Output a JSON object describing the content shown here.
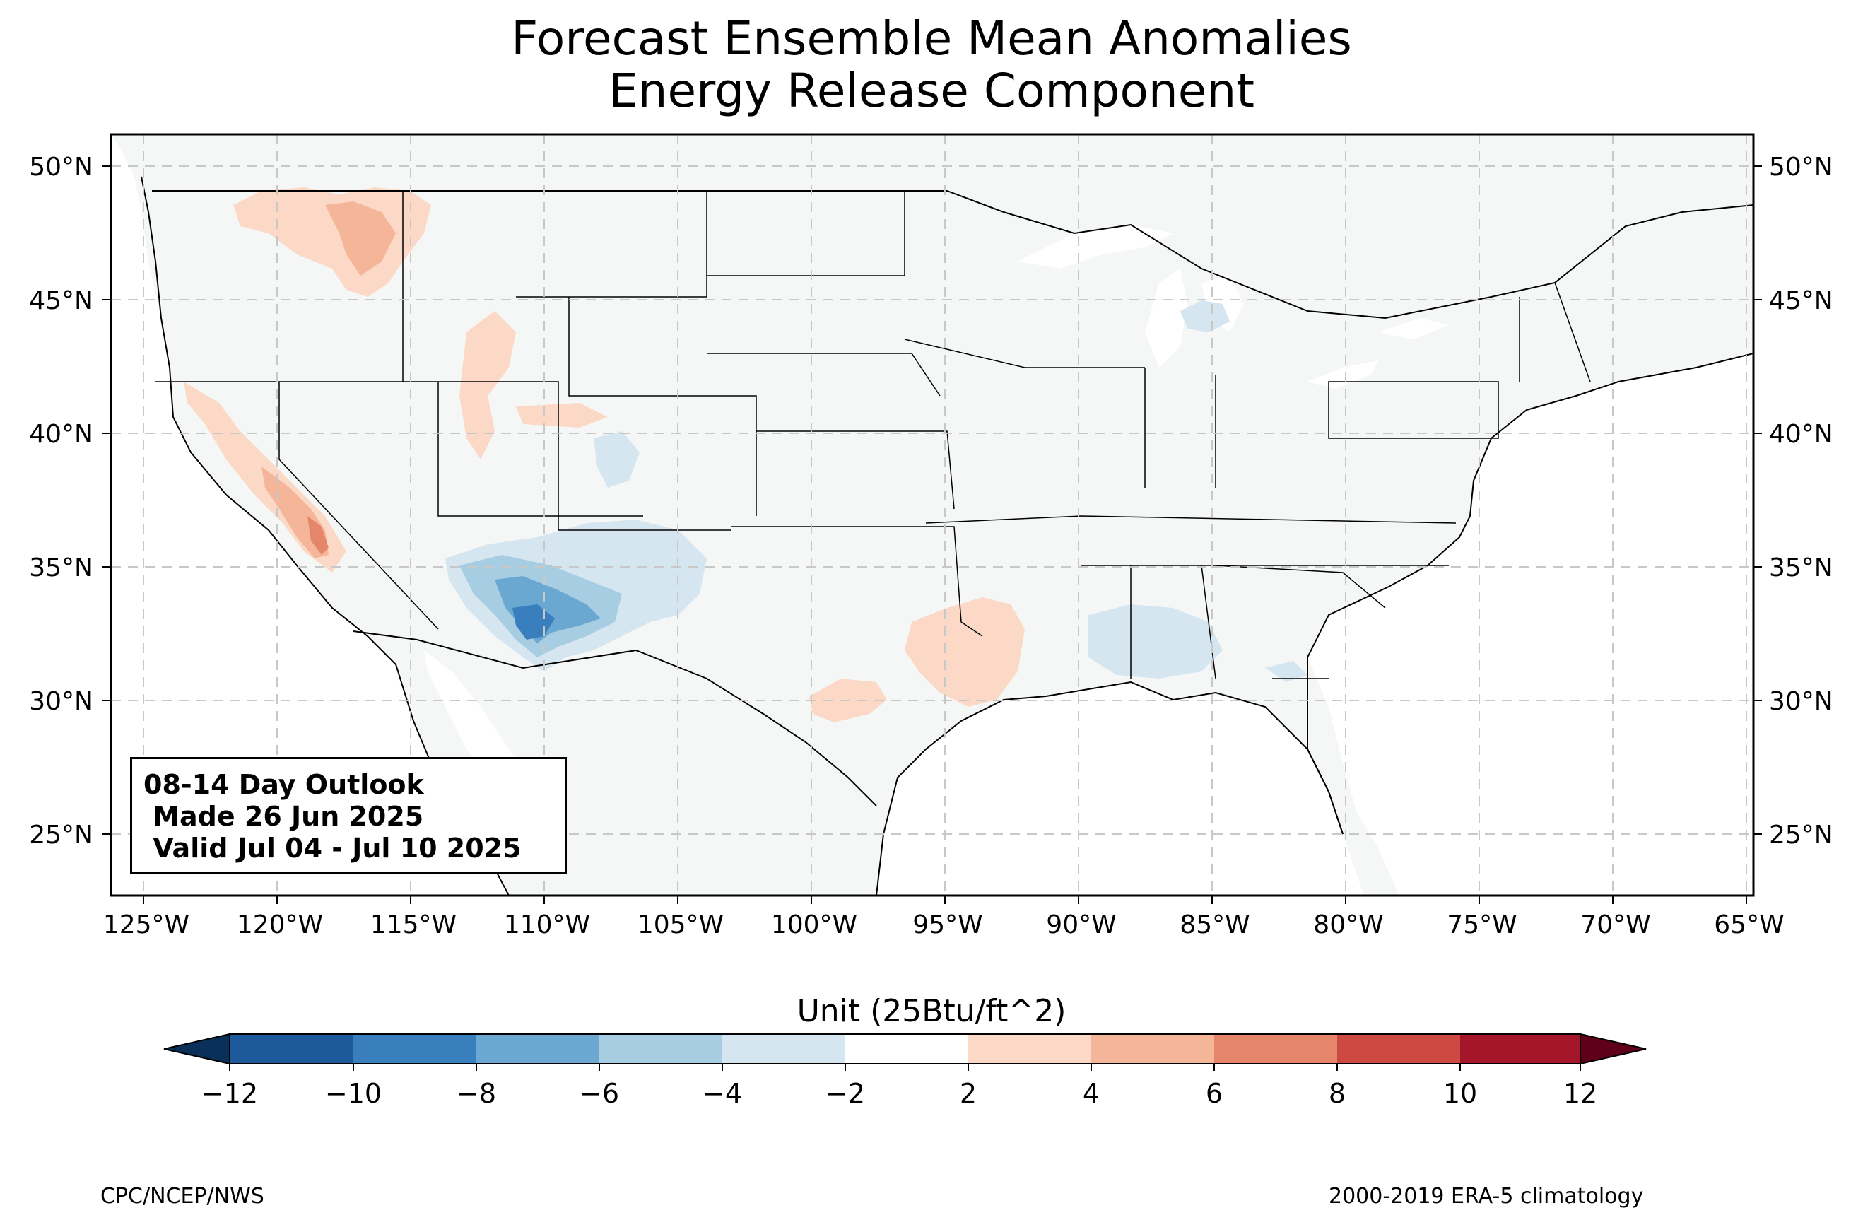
{
  "title": {
    "line1": "Forecast Ensemble Mean Anomalies",
    "line2": "Energy Release Component"
  },
  "map": {
    "type": "filled-contour anomaly map",
    "region": "Contiguous United States",
    "projection": "Plate Carree (lat/lon)",
    "lon_range": [
      -126.3,
      -64.8
    ],
    "lat_range": [
      22.8,
      51.2
    ],
    "lon_ticks": [
      "125°W",
      "120°W",
      "115°W",
      "110°W",
      "105°W",
      "100°W",
      "95°W",
      "90°W",
      "85°W",
      "80°W",
      "75°W",
      "70°W",
      "65°W"
    ],
    "lat_ticks": [
      "50°N",
      "45°N",
      "40°N",
      "35°N",
      "30°N",
      "25°N"
    ],
    "gridlines": "dashed gray",
    "background_color": "#f5f7f6",
    "anomaly_regions": [
      {
        "area": "Southeast Arizona / southwest New Mexico",
        "center": [
          -109.5,
          33.0
        ],
        "level": "-10 to -6",
        "color": "#3a7fbd"
      },
      {
        "area": "Central Arizona / west-central New Mexico",
        "center": [
          -108.0,
          33.5
        ],
        "level": "-6 to -4",
        "color": "#a7cde3"
      },
      {
        "area": "Southwest Colorado",
        "center": [
          -107.0,
          38.7
        ],
        "level": "-4 to -2",
        "color": "#d6e6f1"
      },
      {
        "area": "Mississippi / Alabama",
        "center": [
          -87.5,
          32.2
        ],
        "level": "-4 to -2",
        "color": "#d6e6f1"
      },
      {
        "area": "Lower Michigan",
        "center": [
          -85.0,
          44.7
        ],
        "level": "-4 to -2",
        "color": "#d6e6f1"
      },
      {
        "area": "Sierra Nevada / Central California",
        "center": [
          -118.6,
          36.6
        ],
        "level": "4 to 8",
        "color": "#e58569"
      },
      {
        "area": "Northern Rockies (Idaho / Montana)",
        "center": [
          -113.5,
          47.5
        ],
        "level": "2 to 6",
        "color": "#f4b598"
      },
      {
        "area": "Louisiana / East Texas",
        "center": [
          -93.0,
          32.3
        ],
        "level": "2 to 4",
        "color": "#fbd9c6"
      },
      {
        "area": "Central Texas",
        "center": [
          -98.8,
          30.0
        ],
        "level": "2 to 4",
        "color": "#fbd9c6"
      },
      {
        "area": "Wyoming / Utah",
        "center": [
          -109.0,
          40.5
        ],
        "level": "2 to 4",
        "color": "#fbd9c6"
      }
    ]
  },
  "outlook": {
    "line1": "08-14 Day Outlook",
    "line2": " Made 26 Jun 2025",
    "line3": " Valid Jul 04 - Jul 10 2025"
  },
  "colorbar": {
    "title": "Unit (25Btu/ft^2)",
    "ticks": [
      "−12",
      "−10",
      "−8",
      "−6",
      "−4",
      "−2",
      "2",
      "4",
      "6",
      "8",
      "10",
      "12"
    ],
    "colors": [
      "#1c5a9c",
      "#3a7fbd",
      "#6aa8d2",
      "#a7cde3",
      "#d6e6f1",
      "#ffffff",
      "#fbd9c6",
      "#f4b598",
      "#e58569",
      "#cd4a43",
      "#a6162a"
    ],
    "under_color": "#0a2f58",
    "over_color": "#5e0019",
    "extend": "both"
  },
  "footer": {
    "left": "CPC/NCEP/NWS",
    "right": "2000-2019 ERA-5 climatology"
  }
}
